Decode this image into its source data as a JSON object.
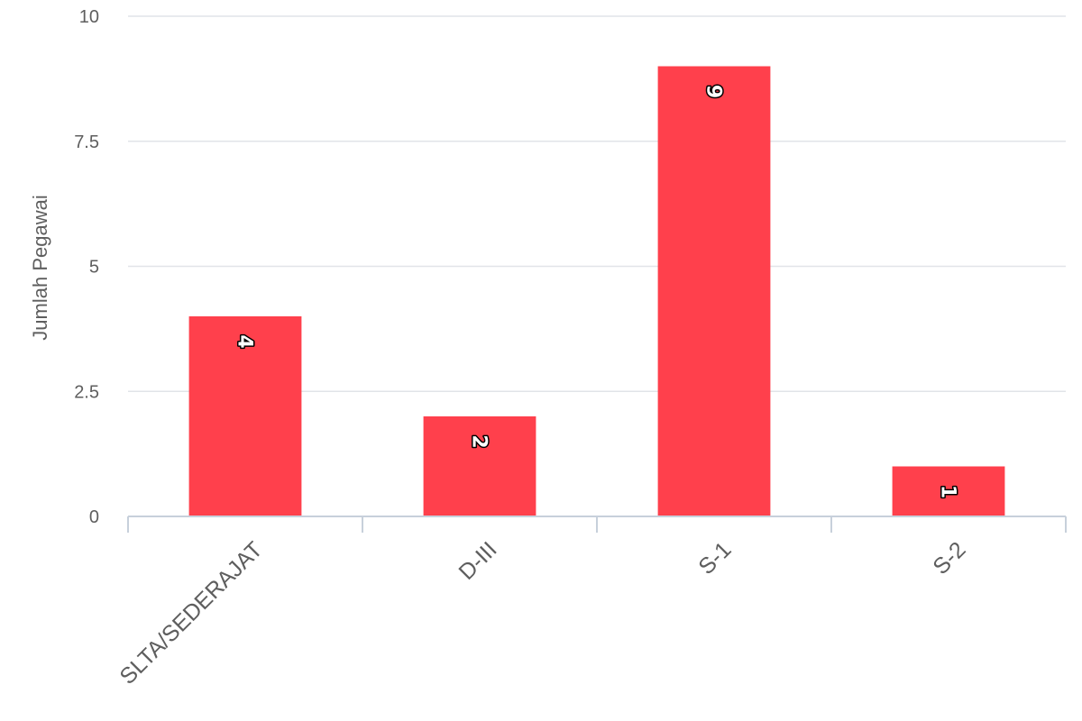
{
  "chart_data": {
    "type": "bar",
    "categories": [
      "SLTA/SEDERAJAT",
      "D-III",
      "S-1",
      "S-2"
    ],
    "values": [
      4,
      2,
      9,
      1
    ],
    "data_labels": [
      "4",
      "2",
      "9",
      "1"
    ],
    "title": "",
    "xlabel": "",
    "ylabel": "Jumlah Pegawai",
    "ylim": [
      0,
      10
    ],
    "y_ticks": [
      0,
      2.5,
      5,
      7.5,
      10
    ],
    "y_tick_labels": [
      "0",
      "2.5",
      "5",
      "7.5",
      "10"
    ],
    "grid": true,
    "legend": "none",
    "colors": {
      "bar": "#ff404c",
      "grid": "#e1e4e8",
      "axis": "#c7d0db",
      "text": "#5e5e5e"
    }
  }
}
